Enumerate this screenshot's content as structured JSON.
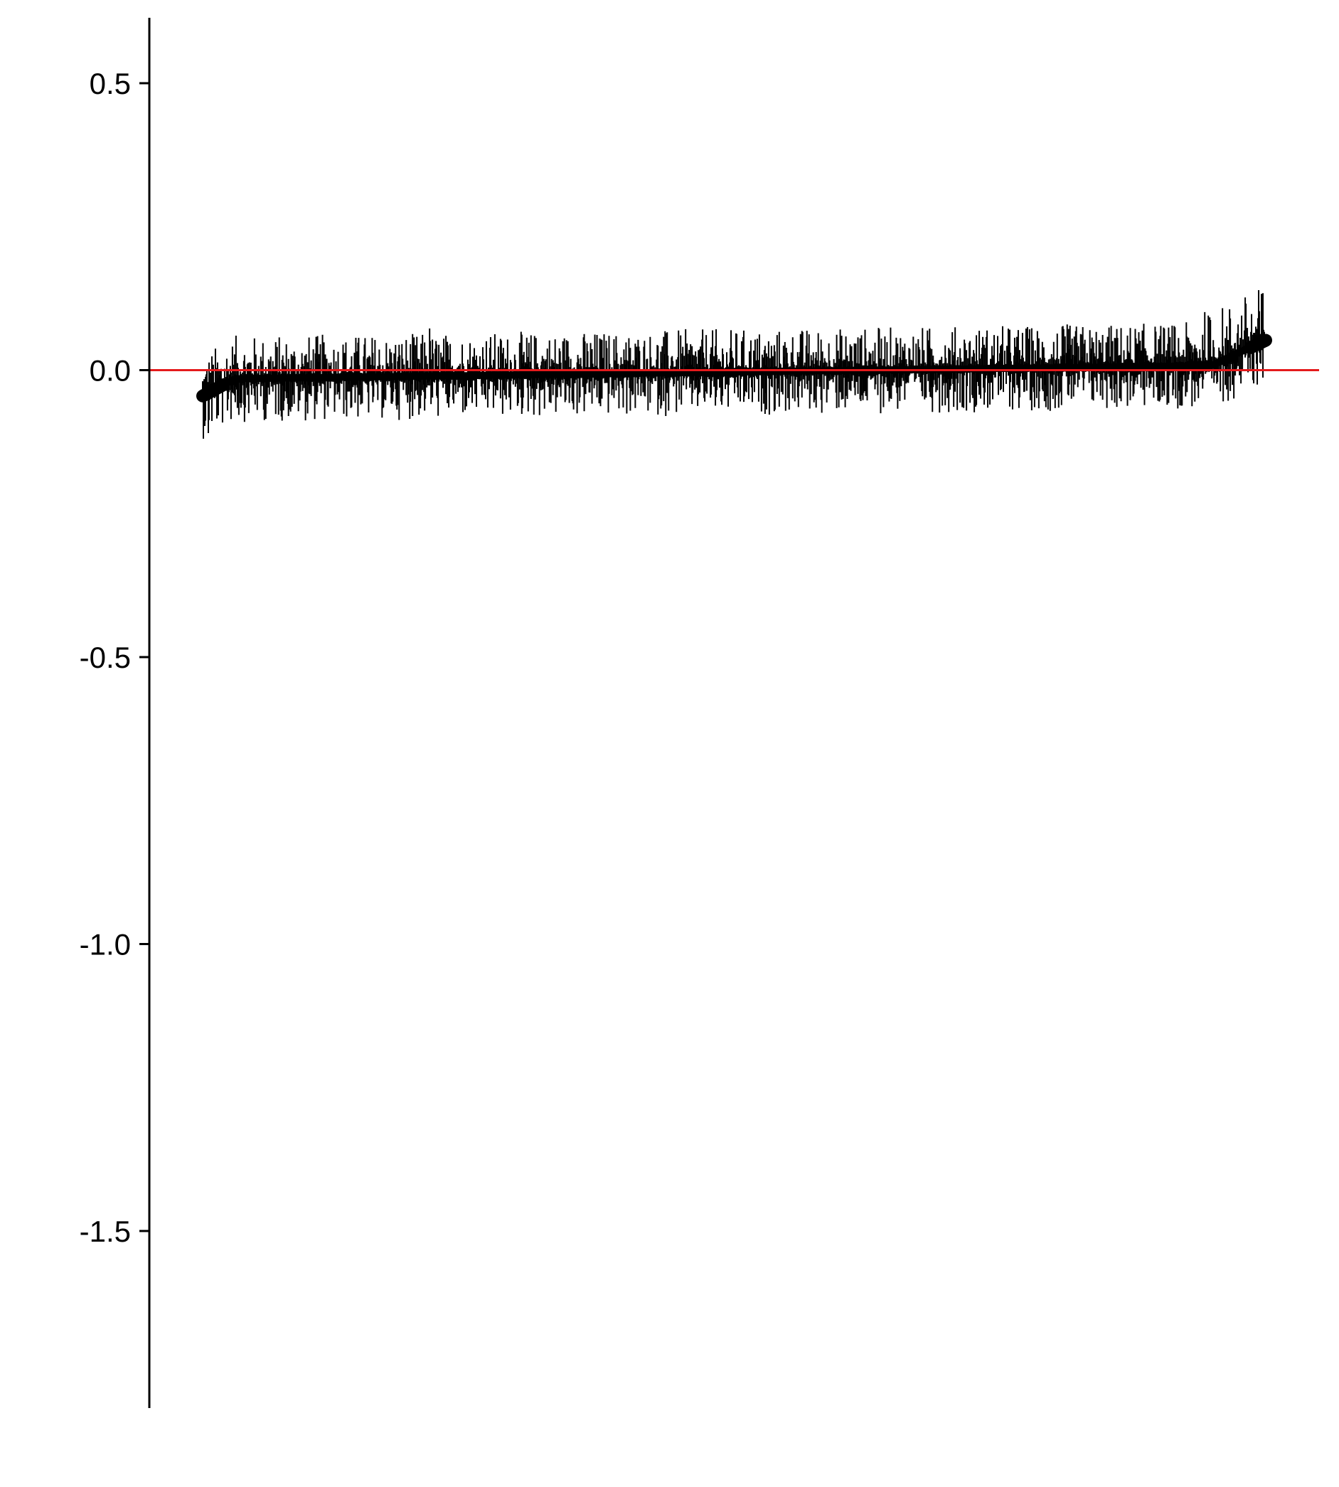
{
  "chart_data": {
    "type": "scatter",
    "description_style": "ranked point estimates with vertical error bars (caterpillar plot)",
    "title": "",
    "xlabel": "",
    "ylabel": "",
    "x_axis_visible": false,
    "ylim": [
      -1.82,
      0.61
    ],
    "y_ticks": [
      {
        "value": 0.5,
        "label": "0.5"
      },
      {
        "value": 0.0,
        "label": "0.0"
      },
      {
        "value": -0.5,
        "label": "-0.5"
      },
      {
        "value": -1.0,
        "label": "-1.0"
      },
      {
        "value": -1.5,
        "label": "-1.5"
      }
    ],
    "reference_line": {
      "y": 0.0,
      "color": "#e41a1c"
    },
    "grid": false,
    "legend": "none",
    "series": [
      {
        "n_points": 1500,
        "point_color": "#000000",
        "estimate_range": [
          -0.045,
          0.052
        ],
        "ci_lower_range": [
          -0.112,
          0.0
        ],
        "ci_upper_range": [
          -0.02,
          0.118
        ]
      }
    ]
  }
}
